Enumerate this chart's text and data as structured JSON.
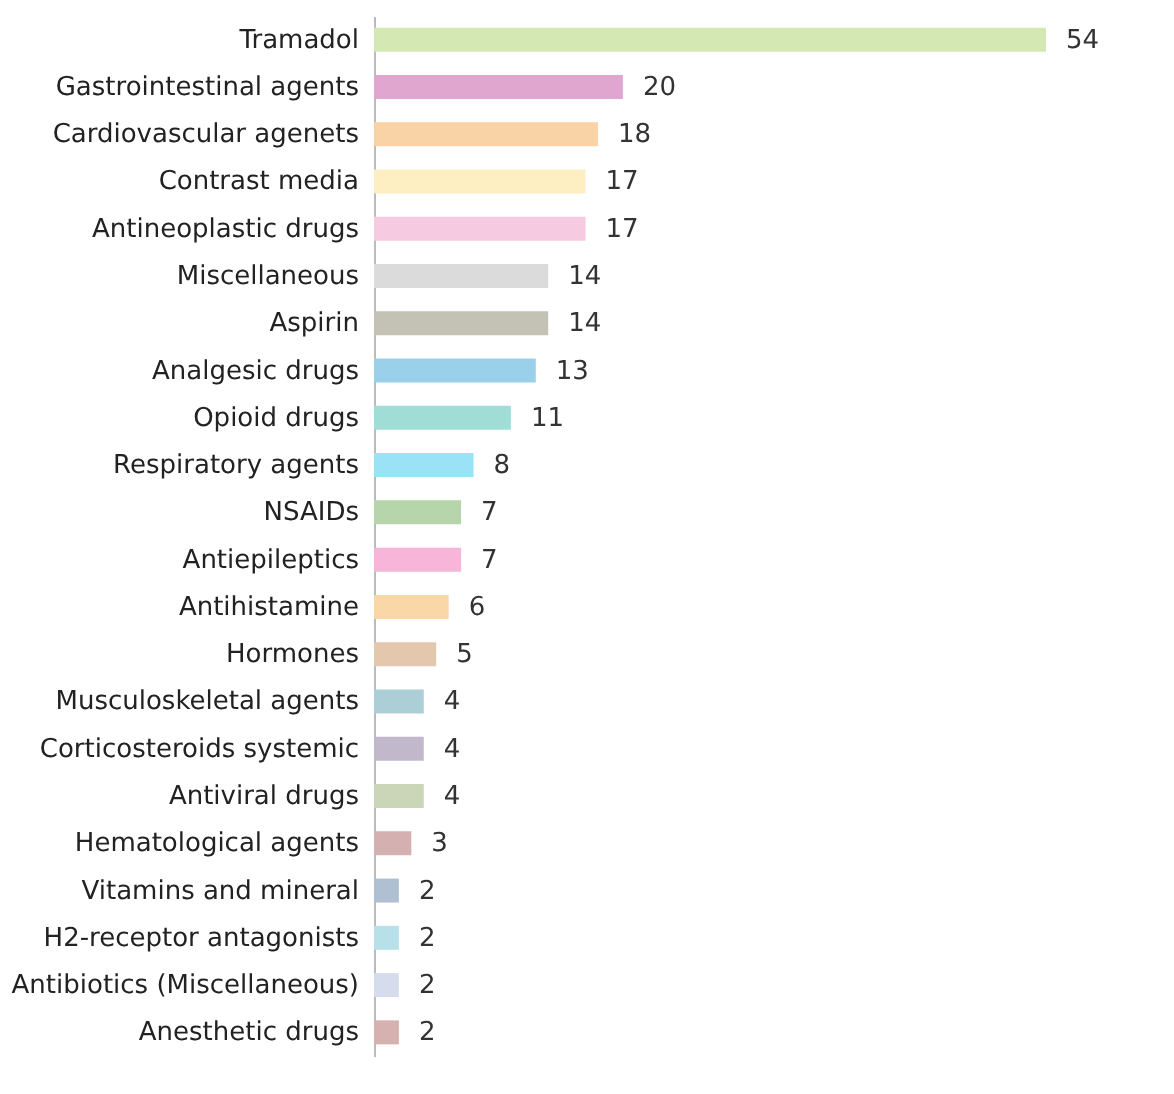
{
  "chart_data": {
    "type": "bar",
    "orientation": "horizontal",
    "data_labels": true,
    "categories": [
      "Tramadol",
      "Gastrointestinal agents",
      "Cardiovascular agenets",
      "Contrast media",
      "Antineoplastic drugs",
      "Miscellaneous",
      "Aspirin",
      "Analgesic drugs",
      "Opioid drugs",
      "Respiratory agents",
      "NSAIDs",
      "Antiepileptics",
      "Antihistamine",
      "Hormones",
      "Musculoskeletal agents",
      "Corticosteroids systemic",
      "Antiviral drugs",
      "Hematological agents",
      "Vitamins and mineral",
      "H2-receptor antagonists",
      "Antibiotics (Miscellaneous)",
      "Anesthetic drugs"
    ],
    "values": [
      54,
      20,
      18,
      17,
      17,
      14,
      14,
      13,
      11,
      8,
      7,
      7,
      6,
      5,
      4,
      4,
      4,
      3,
      2,
      2,
      2,
      2
    ],
    "colors": [
      "#d3e8b3",
      "#e0a6d0",
      "#f9d3a5",
      "#fdefc2",
      "#f6cbe1",
      "#dbdbdb",
      "#c4c2b4",
      "#9bd0ea",
      "#9fddd6",
      "#9ae3f7",
      "#b6d5ab",
      "#f6b5d9",
      "#fad7a6",
      "#e4c8ae",
      "#acced6",
      "#c1b8cc",
      "#cad6b7",
      "#d4b0b0",
      "#afc0d2",
      "#b7e0e9",
      "#d5dcec",
      "#d6b1b0"
    ]
  }
}
